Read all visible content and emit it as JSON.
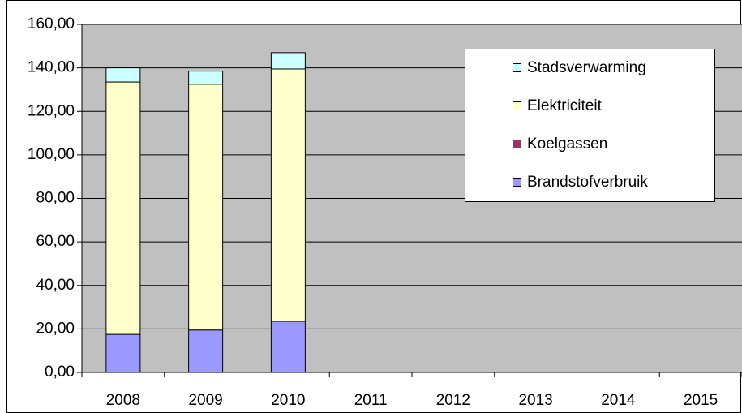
{
  "chart_data": {
    "type": "stacked_bar",
    "categories": [
      "2008",
      "2009",
      "2010",
      "2011",
      "2012",
      "2013",
      "2014",
      "2015"
    ],
    "series": [
      {
        "name": "Brandstofverbruik",
        "color": "#9999ff",
        "values": [
          17.5,
          19.5,
          23.5,
          null,
          null,
          null,
          null,
          null
        ]
      },
      {
        "name": "Koelgassen",
        "color": "#993366",
        "values": [
          0,
          0,
          0,
          null,
          null,
          null,
          null,
          null
        ]
      },
      {
        "name": "Elektriciteit",
        "color": "#ffffcc",
        "values": [
          116,
          113,
          116,
          null,
          null,
          null,
          null,
          null
        ]
      },
      {
        "name": "Stadsverwarming",
        "color": "#ccffff",
        "values": [
          6.5,
          6,
          7.5,
          null,
          null,
          null,
          null,
          null
        ]
      }
    ],
    "ylim": [
      0,
      160
    ],
    "yticks": [
      {
        "value": 0,
        "label": "0,00"
      },
      {
        "value": 20,
        "label": "20,00"
      },
      {
        "value": 40,
        "label": "40,00"
      },
      {
        "value": 60,
        "label": "60,00"
      },
      {
        "value": 80,
        "label": "80,00"
      },
      {
        "value": 100,
        "label": "100,00"
      },
      {
        "value": 120,
        "label": "120,00"
      },
      {
        "value": 140,
        "label": "140,00"
      },
      {
        "value": 160,
        "label": "160,00"
      }
    ],
    "grid": true,
    "legend": "upper right",
    "plot_background": "#c0c0c0"
  }
}
